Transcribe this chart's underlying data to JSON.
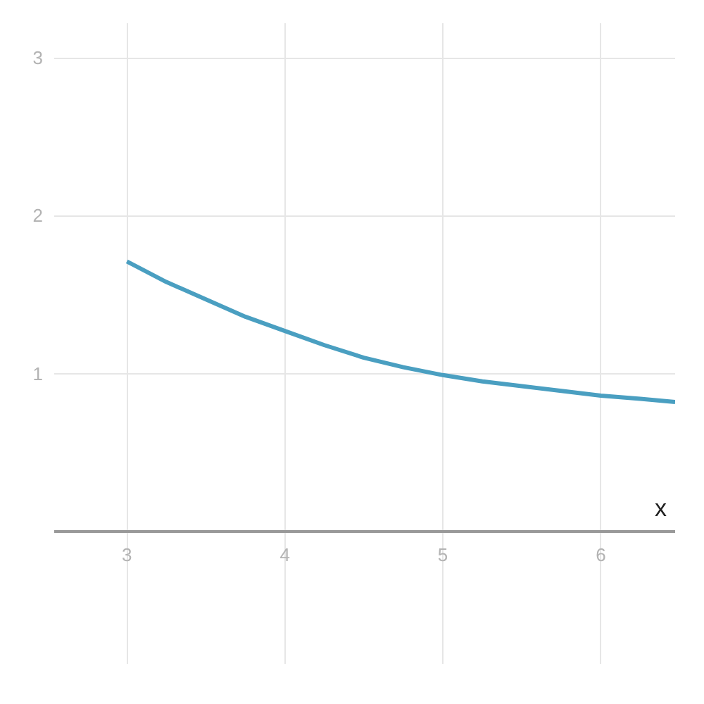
{
  "chart_data": {
    "type": "line",
    "xlabel": "x",
    "x": [
      3,
      3.25,
      3.5,
      3.75,
      4,
      4.25,
      4.5,
      4.75,
      5,
      5.25,
      5.5,
      5.75,
      6,
      6.25,
      6.47
    ],
    "values": [
      1.71,
      1.58,
      1.47,
      1.36,
      1.27,
      1.18,
      1.1,
      1.04,
      0.99,
      0.95,
      0.92,
      0.89,
      0.86,
      0.84,
      0.82
    ],
    "color": "#4a9fc1",
    "line_style": "solid",
    "xlim": [
      2.54,
      6.47
    ],
    "ylim": [
      -0.84,
      3.22
    ],
    "xticks": [
      3,
      4,
      5,
      6
    ],
    "yticks": [
      1,
      2,
      3
    ],
    "grid": true
  }
}
